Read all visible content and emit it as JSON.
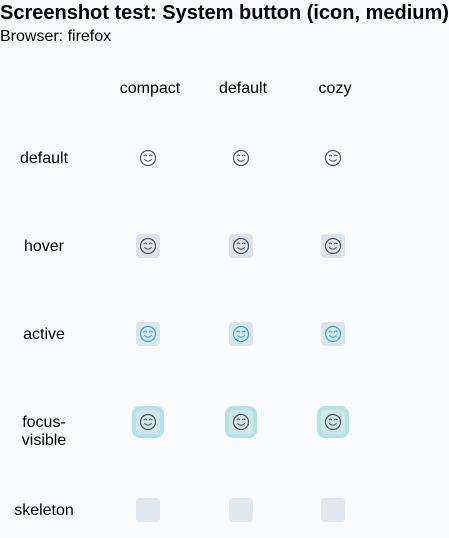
{
  "title": "Screenshot test: System button (icon, medium)",
  "subtitle": "Browser: firefox",
  "columns": [
    "compact",
    "default",
    "cozy"
  ],
  "rows": [
    "default",
    "hover",
    "active",
    "focus-visible",
    "skeleton"
  ],
  "icon": "smile-icon",
  "colors": {
    "icon_default": "#4b5563",
    "icon_active": "#21b7c7",
    "hover_bg": "#dde3ea",
    "focus_ring": "#b3e3e7",
    "skeleton_bg": "#e1e7ee"
  }
}
